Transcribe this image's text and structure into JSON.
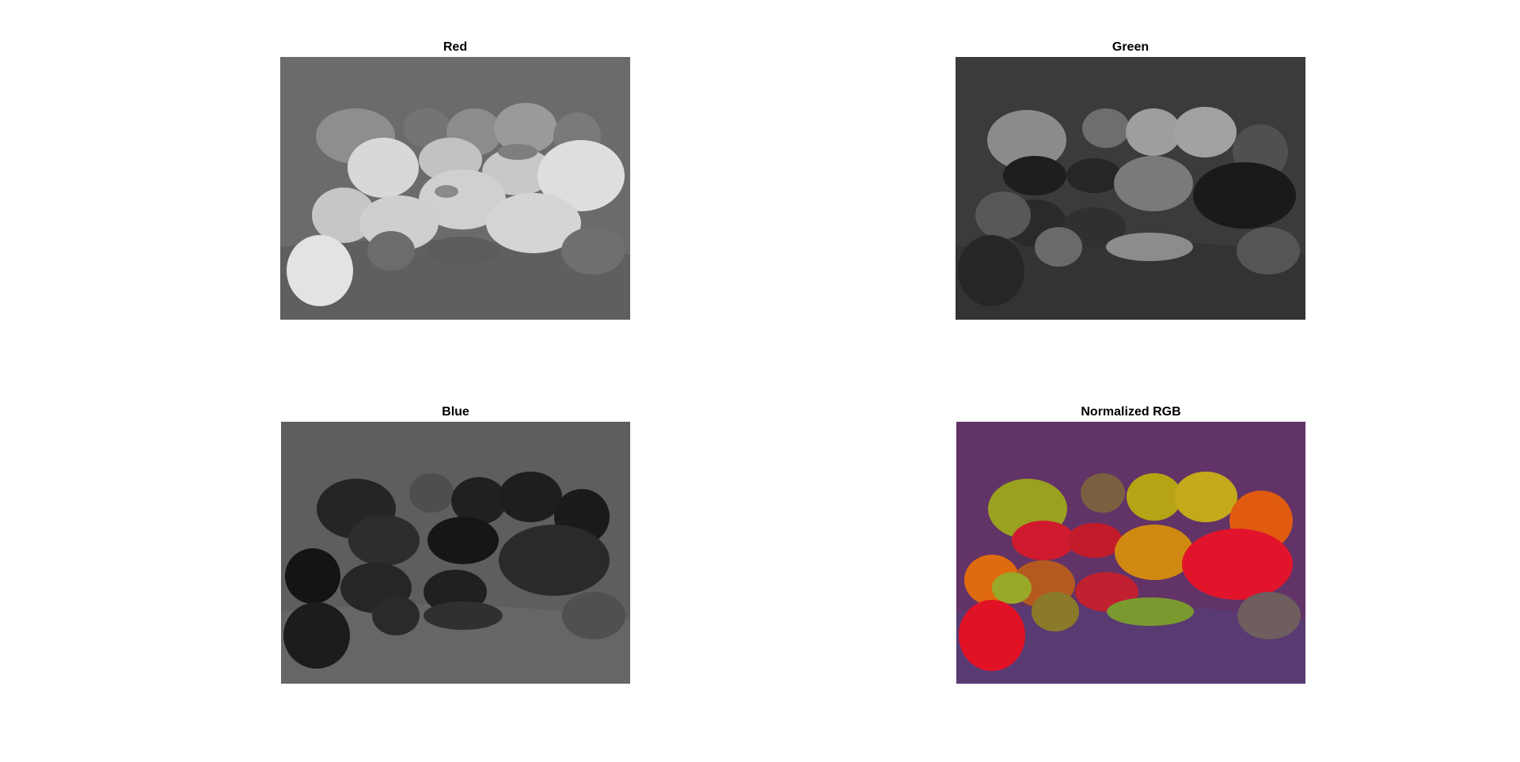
{
  "figure": {
    "panels": [
      {
        "id": "red",
        "title": "Red",
        "mode": "grayscale",
        "background": "#6a6a6a"
      },
      {
        "id": "green",
        "title": "Green",
        "mode": "grayscale",
        "background": "#3a3a3a"
      },
      {
        "id": "blue",
        "title": "Blue",
        "mode": "grayscale",
        "background": "#5c5c5c"
      },
      {
        "id": "norm",
        "title": "Normalized RGB",
        "mode": "color",
        "background": "#5e3068"
      }
    ]
  }
}
